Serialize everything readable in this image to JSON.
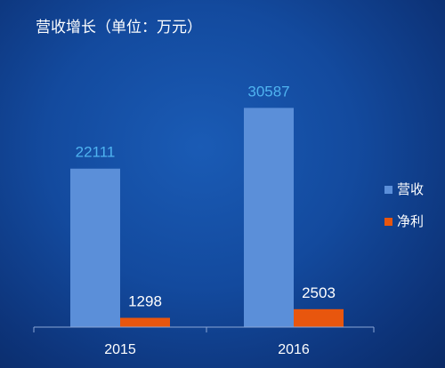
{
  "chart_data": {
    "type": "bar",
    "title": "营收增长（单位：万元）",
    "categories": [
      "2015",
      "2016"
    ],
    "series": [
      {
        "name": "营收",
        "values": [
          22111,
          30587
        ],
        "color": "#5b8fd9",
        "label_color": "#4fb3f0"
      },
      {
        "name": "净利",
        "values": [
          1298,
          2503
        ],
        "color": "#e8560e",
        "label_color": "#ffffff"
      }
    ],
    "ylim": [
      0,
      32000
    ],
    "grid": false,
    "legend": "right"
  }
}
